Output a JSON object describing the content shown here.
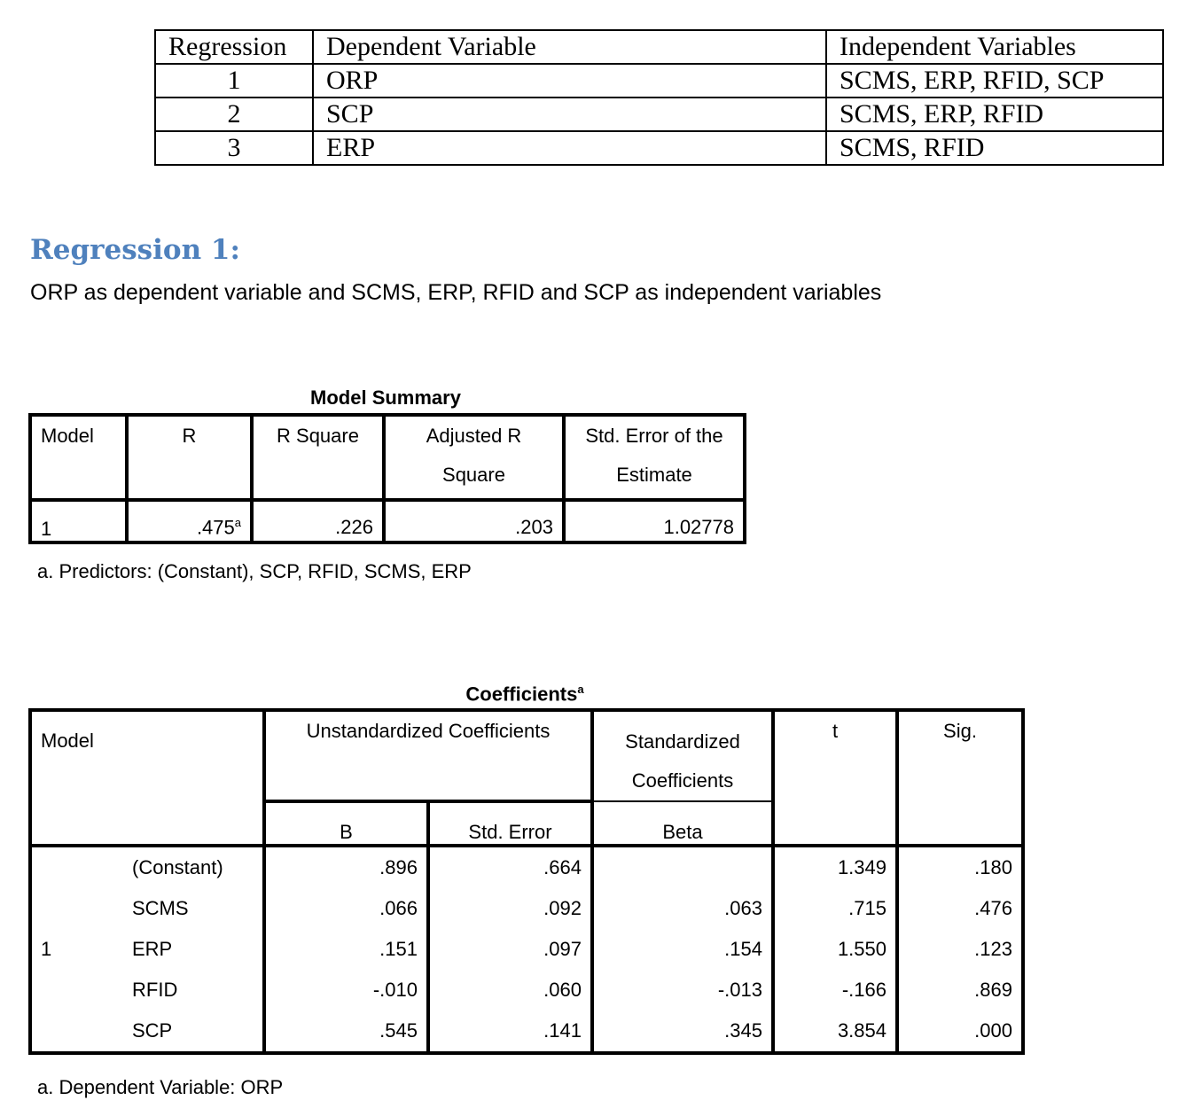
{
  "overview_table": {
    "headers": [
      "Regression",
      "Dependent Variable",
      "Independent Variables"
    ],
    "rows": [
      [
        "1",
        "ORP",
        "SCMS, ERP, RFID, SCP"
      ],
      [
        "2",
        "SCP",
        "SCMS, ERP, RFID"
      ],
      [
        "3",
        "ERP",
        "SCMS, RFID"
      ]
    ]
  },
  "heading": "Regression 1:",
  "subtitle": "ORP as dependent variable and SCMS, ERP, RFID and SCP as independent variables",
  "heading_color": "#4f81bd",
  "model_summary": {
    "title": "Model Summary",
    "headers": [
      "Model",
      "R",
      "R Square",
      "Adjusted R Square",
      "Std. Error of the Estimate"
    ],
    "row": [
      "1",
      ".475",
      ".226",
      ".203",
      "1.02778"
    ],
    "r_sup": "a",
    "footnote": "a. Predictors: (Constant), SCP, RFID, SCMS, ERP"
  },
  "coefficients": {
    "title": "Coefficients",
    "title_sup": "a",
    "model_header": "Model",
    "unstd_header": "Unstandardized Coefficients",
    "std_header": "Standardized Coefficients",
    "t_header": "t",
    "sig_header": "Sig.",
    "b_header": "B",
    "se_header": "Std. Error",
    "beta_header": "Beta",
    "model": "1",
    "rows": [
      [
        "(Constant)",
        ".896",
        ".664",
        "",
        "1.349",
        ".180"
      ],
      [
        "SCMS",
        ".066",
        ".092",
        ".063",
        ".715",
        ".476"
      ],
      [
        "ERP",
        ".151",
        ".097",
        ".154",
        "1.550",
        ".123"
      ],
      [
        "RFID",
        "-.010",
        ".060",
        "-.013",
        "-.166",
        ".869"
      ],
      [
        "SCP",
        ".545",
        ".141",
        ".345",
        "3.854",
        ".000"
      ]
    ],
    "footnote": "a. Dependent Variable: ORP"
  }
}
